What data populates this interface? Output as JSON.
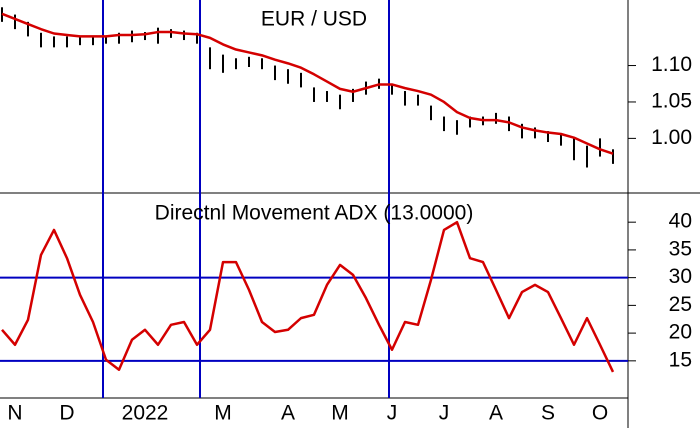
{
  "chart_data": [
    {
      "type": "ohlc",
      "title": "EUR / USD",
      "bar_color": "#000000",
      "high": [
        1.18,
        1.17,
        1.16,
        1.145,
        1.14,
        1.14,
        1.14,
        1.141,
        1.14,
        1.145,
        1.148,
        1.146,
        1.152,
        1.15,
        1.148,
        1.145,
        1.125,
        1.115,
        1.11,
        1.112,
        1.11,
        1.1,
        1.095,
        1.09,
        1.07,
        1.065,
        1.06,
        1.068,
        1.078,
        1.082,
        1.075,
        1.065,
        1.06,
        1.045,
        1.03,
        1.025,
        1.03,
        1.03,
        1.035,
        1.03,
        1.02,
        1.015,
        1.01,
        1.005,
        1.0,
        0.99,
        1.0,
        0.985
      ],
      "low": [
        1.16,
        1.15,
        1.14,
        1.125,
        1.125,
        1.125,
        1.128,
        1.128,
        1.13,
        1.13,
        1.132,
        1.135,
        1.13,
        1.138,
        1.135,
        1.13,
        1.095,
        1.09,
        1.095,
        1.098,
        1.095,
        1.08,
        1.075,
        1.07,
        1.05,
        1.05,
        1.04,
        1.05,
        1.06,
        1.068,
        1.06,
        1.045,
        1.045,
        1.025,
        1.01,
        1.005,
        1.015,
        1.018,
        1.02,
        1.01,
        1.0,
        1.0,
        0.995,
        0.99,
        0.97,
        0.96,
        0.975,
        0.965
      ],
      "series": [
        {
          "color": "#d40000",
          "values": [
            1.171,
            1.164,
            1.157,
            1.15,
            1.144,
            1.142,
            1.14,
            1.14,
            1.14,
            1.142,
            1.142,
            1.143,
            1.146,
            1.146,
            1.144,
            1.143,
            1.138,
            1.129,
            1.122,
            1.118,
            1.114,
            1.108,
            1.103,
            1.097,
            1.088,
            1.078,
            1.068,
            1.064,
            1.069,
            1.074,
            1.074,
            1.069,
            1.065,
            1.06,
            1.05,
            1.036,
            1.028,
            1.025,
            1.025,
            1.022,
            1.015,
            1.011,
            1.008,
            1.006,
            1.001,
            0.993,
            0.985,
            0.979
          ]
        }
      ],
      "ylim": [
        0.925,
        1.19
      ],
      "yticks": [
        {
          "value": 1.1,
          "label": "1.10"
        },
        1.05,
        {
          "value": 1,
          "label": "1.00"
        }
      ]
    },
    {
      "type": "line",
      "title": "Directnl Movement ADX (13.0000)",
      "categories": [
        null,
        "N",
        null,
        null,
        null,
        "D",
        null,
        null,
        null,
        null,
        null,
        "2022",
        null,
        null,
        null,
        null,
        null,
        "M",
        null,
        null,
        null,
        null,
        "A",
        null,
        null,
        null,
        "M",
        null,
        null,
        null,
        "J",
        null,
        null,
        null,
        "J",
        null,
        null,
        null,
        "A",
        null,
        null,
        null,
        "S",
        null,
        null,
        null,
        "O",
        null
      ],
      "series": [
        {
          "color": "#d40000",
          "values": [
            20.6,
            17.9,
            22.4,
            34.1,
            38.6,
            33.5,
            26.9,
            22.0,
            15.2,
            13.4,
            18.8,
            20.6,
            17.9,
            21.5,
            22.0,
            17.9,
            20.6,
            32.8,
            32.8,
            27.8,
            22.0,
            20.2,
            20.6,
            22.7,
            23.3,
            28.7,
            32.3,
            30.5,
            26.3,
            21.5,
            17.0,
            22.0,
            21.5,
            29.6,
            38.6,
            40.0,
            33.5,
            32.8,
            27.8,
            22.7,
            27.4,
            28.7,
            27.4,
            22.7,
            17.9,
            22.7,
            17.9,
            13.0
          ]
        }
      ],
      "hlines": [
        30,
        15
      ],
      "hline_color": "#0000c0",
      "ylim": [
        8.3,
        44.9
      ],
      "yticks": [
        40,
        35,
        30,
        25,
        20,
        15
      ]
    }
  ]
}
